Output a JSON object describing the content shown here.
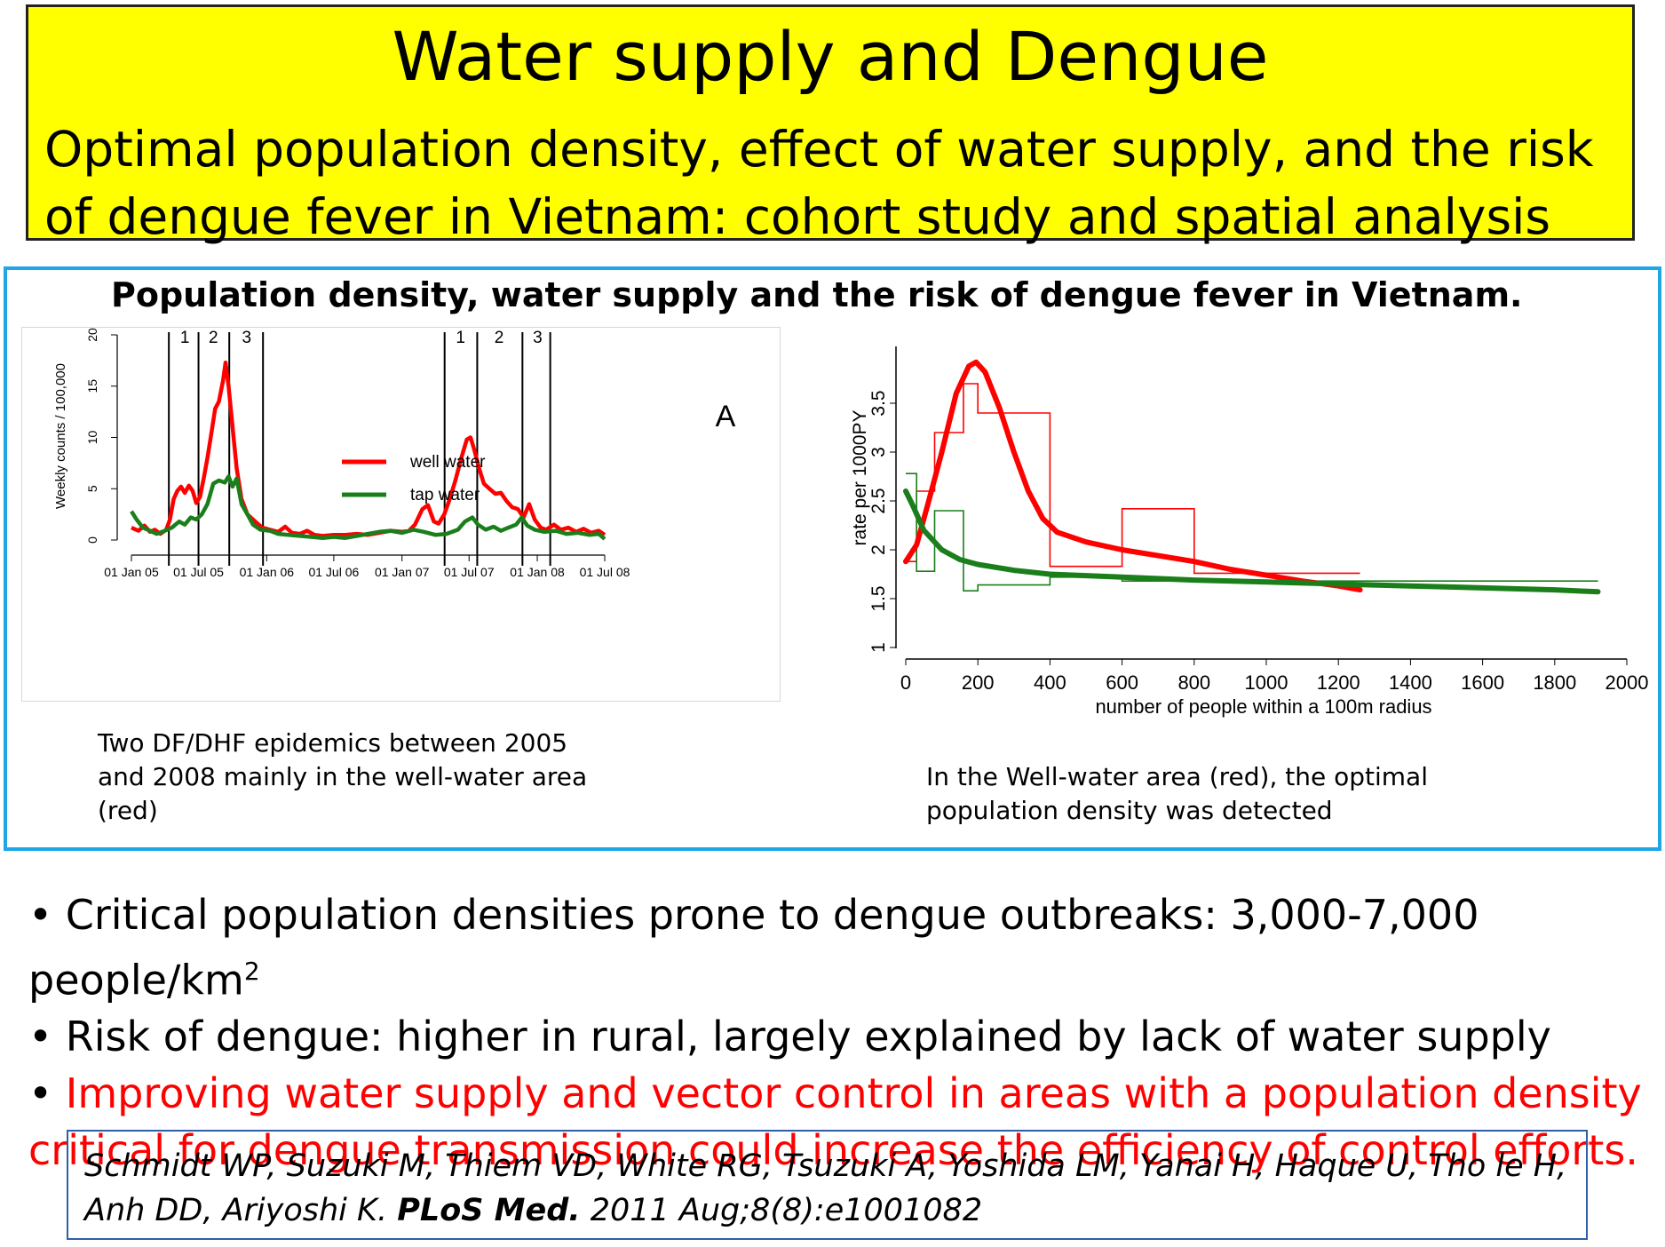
{
  "title": "Water supply and Dengue",
  "subtitle": "Optimal population density, effect of water supply, and the risk of dengue fever in Vietnam: cohort study and spatial analysis",
  "figure": {
    "heading": "Population density, water supply and the risk of dengue fever in Vietnam.",
    "left_caption": "Two DF/DHF epidemics between 2005 and  2008 mainly in the well-water area (red)",
    "right_caption": "In the Well-water area (red), the optimal population density was detected"
  },
  "bullets": [
    {
      "text": "Critical population densities prone to dengue outbreaks: 3,000-7,000 people/km",
      "sup": "2"
    },
    {
      "text": "Risk of dengue: higher in rural, largely explained by lack of water supply"
    },
    {
      "text": "Improving water supply and vector control in areas with a population density critical for dengue transmission could increase the efficiency of control efforts.",
      "color": "#ff0000"
    }
  ],
  "citation": {
    "authors": "Schmidt WP, Suzuki M, Thiem VD, White RG, Tsuzuki A, Yoshida LM, Yanai H, Haque U, Tho le H, Anh DD, Ariyoshi K.",
    "journal": "PLoS Med.",
    "ref": "2011 Aug;8(8):e1001082"
  },
  "chart_data": [
    {
      "type": "line",
      "panel_label": "A",
      "xlabel": "",
      "ylabel": "Weekly counts / 100,000",
      "ylim": [
        0,
        20
      ],
      "yticks": [
        0,
        5,
        10,
        15,
        20
      ],
      "xlim": [
        "2005-01-01",
        "2008-07-01"
      ],
      "xticks": [
        "2005-01-01",
        "2005-07-01",
        "2006-01-01",
        "2006-07-01",
        "2007-01-01",
        "2007-07-01",
        "2008-01-01",
        "2008-07-01"
      ],
      "xtick_labels": [
        "01 Jan 05",
        "01 Jul 05",
        "01 Jan 06",
        "01 Jul 06",
        "01 Jan 07",
        "01 Jul 07",
        "01 Jan 08",
        "01 Jul 08"
      ],
      "phase_lines": [
        "2005-04-12",
        "2005-07-01",
        "2005-09-22",
        "2005-12-22",
        "2007-04-26",
        "2007-07-23",
        "2007-11-22",
        "2008-02-05"
      ],
      "phase_labels": [
        {
          "label": "1",
          "x": "2005-05-25"
        },
        {
          "label": "2",
          "x": "2005-08-10"
        },
        {
          "label": "3",
          "x": "2005-11-08"
        },
        {
          "label": "1",
          "x": "2007-06-08"
        },
        {
          "label": "2",
          "x": "2007-09-20"
        },
        {
          "label": "3",
          "x": "2008-01-02"
        }
      ],
      "series": [
        {
          "name": "well water",
          "color": "#ff0000",
          "points": [
            [
              "2005-01-01",
              1.2
            ],
            [
              "2005-01-20",
              0.9
            ],
            [
              "2005-02-05",
              1.4
            ],
            [
              "2005-02-20",
              0.8
            ],
            [
              "2005-03-05",
              1.0
            ],
            [
              "2005-03-20",
              0.6
            ],
            [
              "2005-04-05",
              1.0
            ],
            [
              "2005-04-15",
              2.0
            ],
            [
              "2005-04-25",
              4.0
            ],
            [
              "2005-05-05",
              4.8
            ],
            [
              "2005-05-15",
              5.2
            ],
            [
              "2005-05-25",
              4.6
            ],
            [
              "2005-06-05",
              5.3
            ],
            [
              "2005-06-15",
              4.8
            ],
            [
              "2005-06-25",
              3.6
            ],
            [
              "2005-07-05",
              4.2
            ],
            [
              "2005-07-15",
              6.0
            ],
            [
              "2005-07-25",
              8.0
            ],
            [
              "2005-08-05",
              10.5
            ],
            [
              "2005-08-15",
              12.8
            ],
            [
              "2005-08-25",
              13.5
            ],
            [
              "2005-09-05",
              15.5
            ],
            [
              "2005-09-12",
              17.3
            ],
            [
              "2005-09-20",
              15.0
            ],
            [
              "2005-10-01",
              11.0
            ],
            [
              "2005-10-12",
              7.0
            ],
            [
              "2005-10-25",
              4.0
            ],
            [
              "2005-11-10",
              2.5
            ],
            [
              "2005-12-01",
              1.8
            ],
            [
              "2005-12-20",
              1.2
            ],
            [
              "2006-01-10",
              1.0
            ],
            [
              "2006-02-01",
              0.8
            ],
            [
              "2006-02-20",
              1.3
            ],
            [
              "2006-03-10",
              0.7
            ],
            [
              "2006-04-01",
              0.6
            ],
            [
              "2006-04-20",
              0.9
            ],
            [
              "2006-05-10",
              0.5
            ],
            [
              "2006-06-01",
              0.4
            ],
            [
              "2006-07-01",
              0.5
            ],
            [
              "2006-08-01",
              0.5
            ],
            [
              "2006-09-01",
              0.6
            ],
            [
              "2006-10-01",
              0.5
            ],
            [
              "2006-11-01",
              0.7
            ],
            [
              "2006-12-01",
              0.9
            ],
            [
              "2007-01-01",
              0.8
            ],
            [
              "2007-01-20",
              0.9
            ],
            [
              "2007-02-05",
              1.5
            ],
            [
              "2007-02-25",
              3.0
            ],
            [
              "2007-03-12",
              3.4
            ],
            [
              "2007-03-28",
              1.8
            ],
            [
              "2007-04-10",
              1.6
            ],
            [
              "2007-04-25",
              2.5
            ],
            [
              "2007-05-10",
              4.0
            ],
            [
              "2007-05-25",
              5.8
            ],
            [
              "2007-06-10",
              8.0
            ],
            [
              "2007-06-25",
              9.8
            ],
            [
              "2007-07-05",
              10.0
            ],
            [
              "2007-07-15",
              8.8
            ],
            [
              "2007-07-28",
              7.0
            ],
            [
              "2007-08-10",
              5.5
            ],
            [
              "2007-08-25",
              5.0
            ],
            [
              "2007-09-10",
              4.5
            ],
            [
              "2007-09-25",
              4.6
            ],
            [
              "2007-10-10",
              3.8
            ],
            [
              "2007-10-25",
              3.2
            ],
            [
              "2007-11-10",
              3.0
            ],
            [
              "2007-11-25",
              2.2
            ],
            [
              "2007-12-10",
              3.5
            ],
            [
              "2007-12-25",
              2.0
            ],
            [
              "2008-01-10",
              1.2
            ],
            [
              "2008-01-25",
              1.0
            ],
            [
              "2008-02-15",
              1.5
            ],
            [
              "2008-03-05",
              1.0
            ],
            [
              "2008-03-25",
              1.2
            ],
            [
              "2008-04-15",
              0.8
            ],
            [
              "2008-05-05",
              1.1
            ],
            [
              "2008-05-25",
              0.7
            ],
            [
              "2008-06-15",
              0.9
            ],
            [
              "2008-07-01",
              0.5
            ]
          ]
        },
        {
          "name": "tap water",
          "color": "#1a7f1a",
          "points": [
            [
              "2005-01-01",
              2.8
            ],
            [
              "2005-01-15",
              2.0
            ],
            [
              "2005-02-01",
              1.2
            ],
            [
              "2005-02-20",
              0.9
            ],
            [
              "2005-03-10",
              0.6
            ],
            [
              "2005-04-01",
              0.9
            ],
            [
              "2005-04-20",
              1.2
            ],
            [
              "2005-05-10",
              1.8
            ],
            [
              "2005-05-25",
              1.5
            ],
            [
              "2005-06-10",
              2.2
            ],
            [
              "2005-06-25",
              2.0
            ],
            [
              "2005-07-10",
              2.5
            ],
            [
              "2005-07-25",
              3.5
            ],
            [
              "2005-08-10",
              5.5
            ],
            [
              "2005-08-25",
              5.8
            ],
            [
              "2005-09-10",
              5.6
            ],
            [
              "2005-09-20",
              6.2
            ],
            [
              "2005-10-01",
              5.2
            ],
            [
              "2005-10-12",
              6.0
            ],
            [
              "2005-10-25",
              3.5
            ],
            [
              "2005-11-10",
              2.5
            ],
            [
              "2005-11-25",
              1.5
            ],
            [
              "2005-12-15",
              1.0
            ],
            [
              "2006-01-10",
              0.9
            ],
            [
              "2006-02-01",
              0.6
            ],
            [
              "2006-03-01",
              0.5
            ],
            [
              "2006-04-01",
              0.4
            ],
            [
              "2006-05-01",
              0.3
            ],
            [
              "2006-06-01",
              0.2
            ],
            [
              "2006-07-01",
              0.3
            ],
            [
              "2006-08-01",
              0.2
            ],
            [
              "2006-09-01",
              0.4
            ],
            [
              "2006-10-01",
              0.6
            ],
            [
              "2006-11-01",
              0.8
            ],
            [
              "2006-12-01",
              0.9
            ],
            [
              "2007-01-01",
              0.7
            ],
            [
              "2007-02-01",
              1.0
            ],
            [
              "2007-03-01",
              0.8
            ],
            [
              "2007-04-01",
              0.5
            ],
            [
              "2007-05-01",
              0.6
            ],
            [
              "2007-06-01",
              1.0
            ],
            [
              "2007-06-20",
              1.8
            ],
            [
              "2007-07-10",
              2.2
            ],
            [
              "2007-07-25",
              1.5
            ],
            [
              "2007-08-15",
              1.0
            ],
            [
              "2007-09-05",
              1.3
            ],
            [
              "2007-09-25",
              0.9
            ],
            [
              "2007-10-15",
              1.2
            ],
            [
              "2007-11-05",
              1.5
            ],
            [
              "2007-11-20",
              2.2
            ],
            [
              "2007-12-05",
              1.4
            ],
            [
              "2007-12-25",
              1.0
            ],
            [
              "2008-01-20",
              0.8
            ],
            [
              "2008-02-20",
              0.9
            ],
            [
              "2008-03-20",
              0.6
            ],
            [
              "2008-04-20",
              0.7
            ],
            [
              "2008-05-20",
              0.5
            ],
            [
              "2008-06-15",
              0.6
            ],
            [
              "2008-07-01",
              0.1
            ]
          ]
        }
      ]
    },
    {
      "type": "line",
      "xlabel": "number of people within a 100m radius",
      "ylabel": "rate per 1000PY",
      "xlim": [
        0,
        2000
      ],
      "xticks": [
        0,
        200,
        400,
        600,
        800,
        1000,
        1200,
        1400,
        1600,
        1800,
        2000
      ],
      "yticks": [
        1,
        1.5,
        2,
        2.5,
        3,
        3.5
      ],
      "ytick_labels": [
        "1",
        "1.5",
        "2",
        "2.5",
        "3",
        "3.5"
      ],
      "series": [
        {
          "name": "well water (smoothed)",
          "color": "#ff0000",
          "style": "thick",
          "points": [
            [
              0,
              1.88
            ],
            [
              30,
              2.05
            ],
            [
              60,
              2.45
            ],
            [
              100,
              3.0
            ],
            [
              140,
              3.6
            ],
            [
              175,
              3.88
            ],
            [
              195,
              3.92
            ],
            [
              220,
              3.82
            ],
            [
              260,
              3.45
            ],
            [
              300,
              3.0
            ],
            [
              340,
              2.6
            ],
            [
              380,
              2.32
            ],
            [
              420,
              2.18
            ],
            [
              500,
              2.08
            ],
            [
              600,
              2.0
            ],
            [
              700,
              1.94
            ],
            [
              800,
              1.88
            ],
            [
              900,
              1.8
            ],
            [
              1000,
              1.74
            ],
            [
              1100,
              1.68
            ],
            [
              1200,
              1.63
            ],
            [
              1260,
              1.59
            ]
          ]
        },
        {
          "name": "tap water (smoothed)",
          "color": "#1a7f1a",
          "style": "thick",
          "points": [
            [
              0,
              2.6
            ],
            [
              20,
              2.45
            ],
            [
              50,
              2.2
            ],
            [
              100,
              2.0
            ],
            [
              150,
              1.9
            ],
            [
              200,
              1.85
            ],
            [
              300,
              1.79
            ],
            [
              400,
              1.75
            ],
            [
              600,
              1.72
            ],
            [
              800,
              1.69
            ],
            [
              1000,
              1.67
            ],
            [
              1200,
              1.65
            ],
            [
              1400,
              1.63
            ],
            [
              1600,
              1.61
            ],
            [
              1800,
              1.59
            ],
            [
              1920,
              1.57
            ]
          ]
        },
        {
          "name": "well water (step)",
          "color": "#ff0000",
          "style": "thin-step",
          "points": [
            [
              0,
              1.88
            ],
            [
              30,
              1.88
            ],
            [
              30,
              2.6
            ],
            [
              80,
              2.6
            ],
            [
              80,
              3.2
            ],
            [
              160,
              3.2
            ],
            [
              160,
              3.7
            ],
            [
              200,
              3.7
            ],
            [
              200,
              3.4
            ],
            [
              400,
              3.4
            ],
            [
              400,
              1.83
            ],
            [
              600,
              1.83
            ],
            [
              600,
              2.42
            ],
            [
              800,
              2.42
            ],
            [
              800,
              1.76
            ],
            [
              1260,
              1.76
            ]
          ]
        },
        {
          "name": "tap water (step)",
          "color": "#1a7f1a",
          "style": "thin-step",
          "points": [
            [
              0,
              2.78
            ],
            [
              30,
              2.78
            ],
            [
              30,
              1.78
            ],
            [
              80,
              1.78
            ],
            [
              80,
              2.4
            ],
            [
              160,
              2.4
            ],
            [
              160,
              1.58
            ],
            [
              200,
              1.58
            ],
            [
              200,
              1.64
            ],
            [
              400,
              1.64
            ],
            [
              400,
              1.72
            ],
            [
              600,
              1.72
            ],
            [
              600,
              1.68
            ],
            [
              1920,
              1.68
            ]
          ]
        }
      ]
    }
  ]
}
